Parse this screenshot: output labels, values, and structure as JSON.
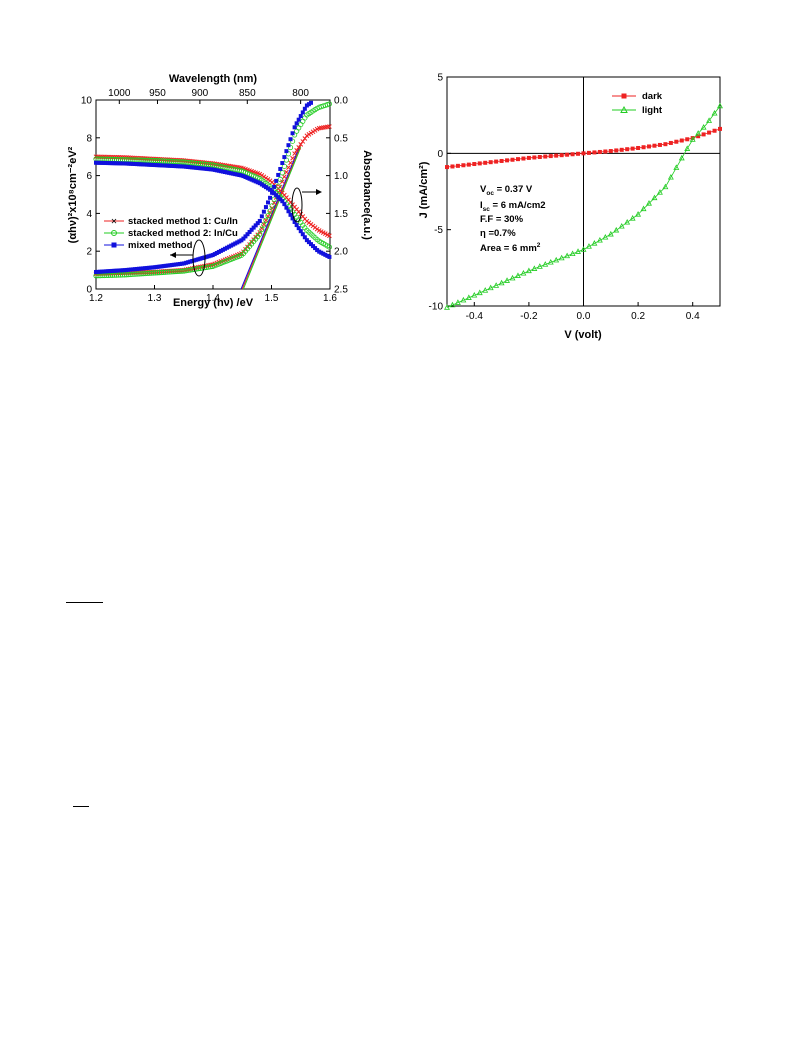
{
  "chart_data": [
    {
      "type": "scatter",
      "xlabel": "Energy (hν) /eV",
      "ylabel": "(αhν)²x10⁸cm⁻²eV²",
      "y2label": "Absorbance(a.u.)",
      "x2label": "Wavelength (nm)",
      "xlim": [
        1.2,
        1.6
      ],
      "ylim": [
        0,
        10
      ],
      "y2lim": [
        0.0,
        2.5
      ],
      "y2_reversed": true,
      "xticks": [
        "1.2",
        "1.3",
        "1.4",
        "1.5",
        "1.6"
      ],
      "yticks": [
        "0",
        "2",
        "4",
        "6",
        "8",
        "10"
      ],
      "y2ticks": [
        "0.0",
        "0.5",
        "1.0",
        "1.5",
        "2.0",
        "2.5"
      ],
      "x2ticks": [
        {
          "label": "1000",
          "wl": 1000
        },
        {
          "label": "950",
          "wl": 950
        },
        {
          "label": "900",
          "wl": 900
        },
        {
          "label": "850",
          "wl": 850
        },
        {
          "label": "800",
          "wl": 800
        }
      ],
      "grid": false,
      "legend_position": "middle-left",
      "colors": {
        "series1": "#ee2222",
        "series2": "#22cc22",
        "series3": "#1111dd"
      },
      "series": [
        {
          "name": "stacked method 1: Cu/In",
          "marker": "x",
          "tauc": {
            "x": [
              1.2,
              1.25,
              1.3,
              1.35,
              1.4,
              1.45,
              1.48,
              1.5,
              1.52,
              1.54,
              1.56,
              1.58,
              1.6
            ],
            "y": [
              0.8,
              0.85,
              0.9,
              1.0,
              1.3,
              1.9,
              3.0,
              4.2,
              5.8,
              7.2,
              8.1,
              8.5,
              8.6
            ]
          },
          "absorbance": {
            "x": [
              1.2,
              1.25,
              1.3,
              1.35,
              1.4,
              1.45,
              1.48,
              1.5,
              1.52,
              1.54,
              1.56,
              1.58,
              1.6
            ],
            "y": [
              0.75,
              0.76,
              0.78,
              0.8,
              0.84,
              0.9,
              0.98,
              1.08,
              1.24,
              1.42,
              1.6,
              1.72,
              1.8
            ]
          }
        },
        {
          "name": "stacked method 2: In/Cu",
          "marker": "circle",
          "tauc": {
            "x": [
              1.2,
              1.25,
              1.3,
              1.35,
              1.4,
              1.45,
              1.48,
              1.5,
              1.52,
              1.54,
              1.56,
              1.58,
              1.6
            ],
            "y": [
              0.7,
              0.75,
              0.85,
              0.95,
              1.2,
              1.8,
              2.9,
              4.3,
              6.3,
              8.2,
              9.2,
              9.6,
              9.8
            ]
          },
          "absorbance": {
            "x": [
              1.2,
              1.25,
              1.3,
              1.35,
              1.4,
              1.45,
              1.48,
              1.5,
              1.52,
              1.54,
              1.56,
              1.58,
              1.6
            ],
            "y": [
              0.78,
              0.79,
              0.8,
              0.82,
              0.86,
              0.94,
              1.04,
              1.16,
              1.32,
              1.52,
              1.72,
              1.86,
              1.95
            ]
          }
        },
        {
          "name": "mixed method",
          "marker": "square",
          "tauc": {
            "x": [
              1.2,
              1.25,
              1.3,
              1.35,
              1.4,
              1.45,
              1.48,
              1.5,
              1.52,
              1.54,
              1.56,
              1.57
            ],
            "y": [
              0.9,
              1.0,
              1.15,
              1.35,
              1.8,
              2.6,
              3.6,
              5.0,
              6.8,
              8.6,
              9.7,
              9.9
            ]
          },
          "absorbance": {
            "x": [
              1.2,
              1.25,
              1.3,
              1.35,
              1.4,
              1.45,
              1.48,
              1.5,
              1.52,
              1.54,
              1.56,
              1.58,
              1.6
            ],
            "y": [
              0.83,
              0.84,
              0.86,
              0.88,
              0.92,
              1.0,
              1.1,
              1.2,
              1.35,
              1.62,
              1.85,
              2.0,
              2.08
            ]
          }
        }
      ],
      "fit_lines": [
        {
          "x": [
            1.45,
            1.55
          ],
          "y": [
            0,
            7.6
          ],
          "color": "#ee2222"
        },
        {
          "x": [
            1.452,
            1.55
          ],
          "y": [
            0,
            7.5
          ],
          "color": "#22cc22"
        },
        {
          "x": [
            1.448,
            1.55
          ],
          "y": [
            0,
            7.7
          ],
          "color": "#1111dd"
        }
      ]
    },
    {
      "type": "line",
      "xlabel": "V (volt)",
      "ylabel": "J (mA/cm²)",
      "xlim": [
        -0.5,
        0.5
      ],
      "ylim": [
        -10,
        5
      ],
      "xticks": [
        "-0.4",
        "-0.2",
        "0.0",
        "0.2",
        "0.4"
      ],
      "yticks": [
        "5",
        "0",
        "-5",
        "-10"
      ],
      "grid": false,
      "legend_position": "top-right",
      "colors": {
        "dark": "#ee2222",
        "light": "#22cc22"
      },
      "series": [
        {
          "name": "dark",
          "marker": "square",
          "x": [
            -0.5,
            -0.4,
            -0.3,
            -0.2,
            -0.1,
            0.0,
            0.1,
            0.2,
            0.3,
            0.4,
            0.5
          ],
          "y": [
            -0.9,
            -0.7,
            -0.5,
            -0.3,
            -0.15,
            0.0,
            0.15,
            0.35,
            0.6,
            1.0,
            1.6
          ]
        },
        {
          "name": "light",
          "marker": "triangle",
          "x": [
            -0.5,
            -0.4,
            -0.3,
            -0.2,
            -0.1,
            0.0,
            0.1,
            0.2,
            0.3,
            0.37,
            0.4,
            0.45,
            0.5
          ],
          "y": [
            -10.1,
            -9.3,
            -8.5,
            -7.7,
            -7.0,
            -6.3,
            -5.3,
            -4.0,
            -2.2,
            0.0,
            0.9,
            1.9,
            3.1
          ]
        }
      ],
      "annotations": {
        "voc_label": "V",
        "voc_sub": "oc",
        "voc_value": " = 0.37 V",
        "isc_label": "I",
        "isc_sub": "sc",
        "isc_value": " = 6 mA/cm2",
        "ff": "F.F = 30%",
        "eta": "η  =0.7%",
        "area_label": "Area = 6 mm",
        "area_sup": "2"
      }
    }
  ]
}
